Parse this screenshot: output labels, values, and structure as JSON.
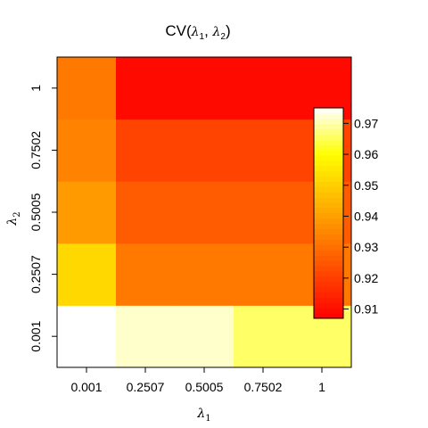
{
  "chart_data": {
    "type": "heatmap",
    "title_main": "CV(",
    "title_l1": "λ",
    "title_s1": "1",
    "title_sep": ", ",
    "title_l2": "λ",
    "title_s2": "2",
    "title_end": ")",
    "xlabel": "λ",
    "xlabel_sub": "1",
    "ylabel": "λ",
    "ylabel_sub": "2",
    "x_categories": [
      "0.001",
      "0.2507",
      "0.5005",
      "0.7502",
      "1"
    ],
    "y_categories": [
      "0.001",
      "0.2507",
      "0.5005",
      "0.7502",
      "1"
    ],
    "values": [
      [
        0.975,
        0.972,
        0.972,
        0.966,
        0.966
      ],
      [
        0.952,
        0.932,
        0.932,
        0.932,
        0.932
      ],
      [
        0.939,
        0.926,
        0.926,
        0.926,
        0.926
      ],
      [
        0.934,
        0.921,
        0.921,
        0.921,
        0.921
      ],
      [
        0.932,
        0.909,
        0.909,
        0.909,
        0.909
      ]
    ],
    "color_range": [
      0.907,
      0.975
    ],
    "colorbar_ticks": [
      "0.91",
      "0.92",
      "0.93",
      "0.94",
      "0.95",
      "0.96",
      "0.97"
    ],
    "colorbar_tick_values": [
      0.91,
      0.92,
      0.93,
      0.94,
      0.95,
      0.96,
      0.97
    ],
    "palette": "heat (red → yellow → white)",
    "legend_position": "right, inside plot"
  }
}
